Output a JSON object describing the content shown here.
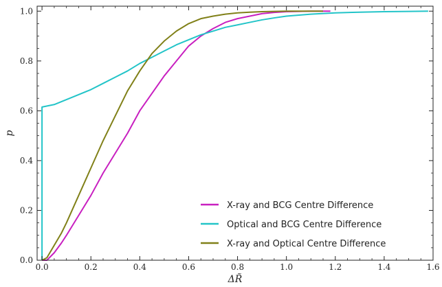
{
  "chart_data": {
    "type": "line",
    "title": "",
    "xlabel": "ΔR̃",
    "ylabel": "p",
    "xlim": [
      -0.02,
      1.6
    ],
    "ylim": [
      0.0,
      1.02
    ],
    "grid": false,
    "legend_position": "bottom-right",
    "x_ticks": [
      0.0,
      0.2,
      0.4,
      0.6,
      0.8,
      1.0,
      1.2,
      1.4,
      1.6
    ],
    "x_tick_labels": [
      "0.0",
      "0.2",
      "0.4",
      "0.6",
      "0.8",
      "1.0",
      "1.2",
      "1.4",
      "1.6"
    ],
    "y_ticks": [
      0.0,
      0.2,
      0.4,
      0.6,
      0.8,
      1.0
    ],
    "y_tick_labels": [
      "0.0",
      "0.2",
      "0.4",
      "0.6",
      "0.8",
      "1.0"
    ],
    "series": [
      {
        "name": "X-ray and BCG Centre Difference",
        "color": "#c81fc0",
        "x": [
          0.0,
          0.02,
          0.05,
          0.08,
          0.1,
          0.15,
          0.2,
          0.25,
          0.3,
          0.35,
          0.4,
          0.45,
          0.5,
          0.55,
          0.6,
          0.65,
          0.7,
          0.75,
          0.8,
          0.85,
          0.9,
          0.95,
          1.0,
          1.05,
          1.1,
          1.18
        ],
        "y": [
          0.0,
          0.0,
          0.03,
          0.07,
          0.1,
          0.18,
          0.26,
          0.35,
          0.43,
          0.51,
          0.6,
          0.67,
          0.74,
          0.8,
          0.86,
          0.9,
          0.93,
          0.955,
          0.97,
          0.98,
          0.99,
          0.995,
          0.998,
          0.999,
          1.0,
          1.0
        ]
      },
      {
        "name": "Optical and BCG Centre Difference",
        "color": "#22c4c8",
        "x": [
          0.0,
          0.0,
          0.0,
          0.05,
          0.1,
          0.15,
          0.2,
          0.25,
          0.3,
          0.35,
          0.4,
          0.45,
          0.5,
          0.55,
          0.6,
          0.65,
          0.7,
          0.75,
          0.8,
          0.85,
          0.9,
          0.95,
          1.0,
          1.1,
          1.2,
          1.3,
          1.4,
          1.5,
          1.58
        ],
        "y": [
          0.0,
          0.6,
          0.615,
          0.625,
          0.645,
          0.665,
          0.685,
          0.71,
          0.735,
          0.76,
          0.79,
          0.815,
          0.84,
          0.865,
          0.885,
          0.905,
          0.92,
          0.935,
          0.945,
          0.955,
          0.965,
          0.973,
          0.98,
          0.988,
          0.993,
          0.996,
          0.998,
          0.999,
          1.0
        ]
      },
      {
        "name": "X-ray and Optical Centre Difference",
        "color": "#808018",
        "x": [
          0.0,
          0.02,
          0.05,
          0.08,
          0.1,
          0.15,
          0.2,
          0.25,
          0.3,
          0.35,
          0.4,
          0.45,
          0.5,
          0.55,
          0.6,
          0.65,
          0.7,
          0.75,
          0.8,
          0.85,
          0.9,
          0.95,
          1.0,
          1.05,
          1.1,
          1.15
        ],
        "y": [
          0.0,
          0.01,
          0.06,
          0.11,
          0.15,
          0.26,
          0.37,
          0.48,
          0.58,
          0.68,
          0.76,
          0.83,
          0.88,
          0.92,
          0.95,
          0.97,
          0.98,
          0.988,
          0.993,
          0.996,
          0.998,
          0.999,
          1.0,
          1.0,
          1.0,
          1.0
        ]
      }
    ]
  }
}
